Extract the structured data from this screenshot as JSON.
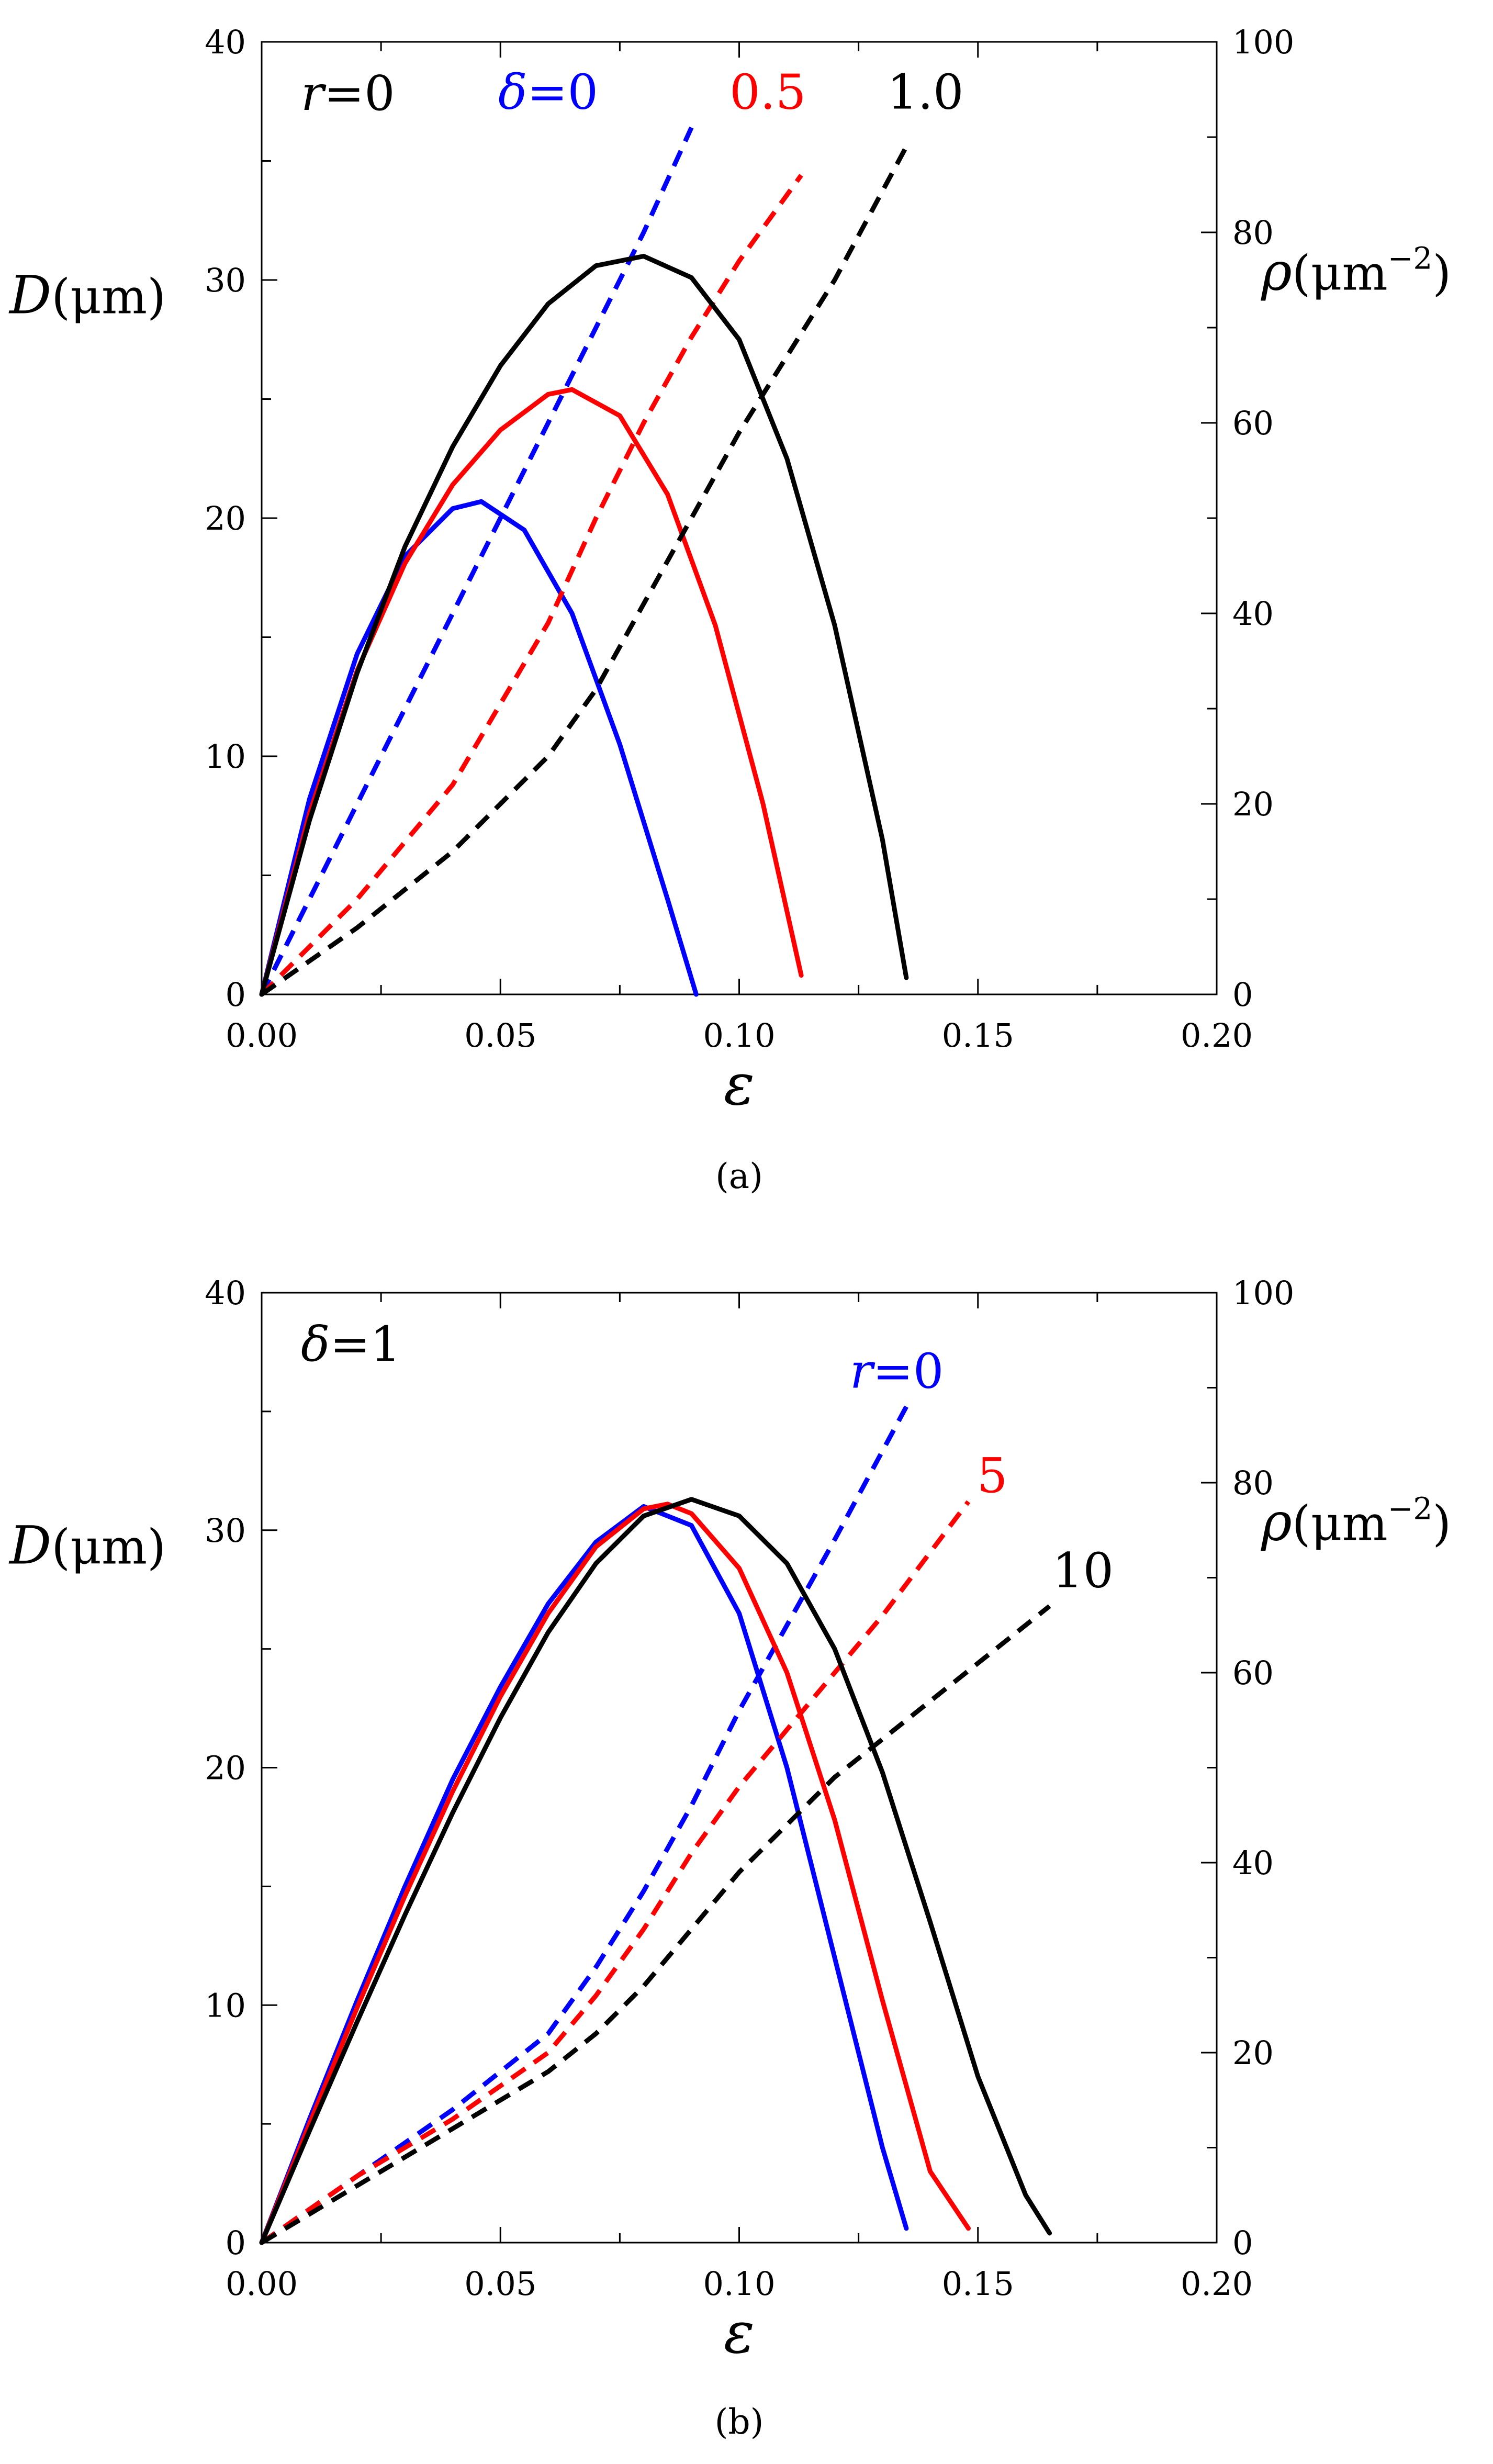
{
  "chart_data": [
    {
      "type": "line",
      "panel_label": "a",
      "caption": "(a)",
      "note": {
        "symbol": "r",
        "value": "0"
      },
      "xlabel": "ε",
      "ylabel_left": {
        "symbol": "D",
        "unit": "(μm)"
      },
      "ylabel_right": {
        "symbol": "ρ",
        "unit": "(μm",
        "exp": "−2",
        "close": ")"
      },
      "xlim": [
        0,
        0.2
      ],
      "ylim_left": [
        0,
        40
      ],
      "ylim_right": [
        0,
        100
      ],
      "xticks": [
        "0.00",
        "0.05",
        "0.10",
        "0.15",
        "0.20"
      ],
      "xtick_values": [
        0,
        0.05,
        0.1,
        0.15,
        0.2
      ],
      "yticks_left": [
        "0",
        "10",
        "20",
        "30",
        "40"
      ],
      "ytick_values_left": [
        0,
        10,
        20,
        30,
        40
      ],
      "yticks_right": [
        "0",
        "20",
        "40",
        "60",
        "80",
        "100"
      ],
      "ytick_values_right": [
        0,
        20,
        40,
        60,
        80,
        100
      ],
      "series_label_symbol": "δ=",
      "series": [
        {
          "name": "0",
          "label": "0",
          "label_symbol": true,
          "color": "#0000ff",
          "label_at": [
            0.06,
            93
          ],
          "D": {
            "x": [
              0,
              0.01,
              0.02,
              0.03,
              0.04,
              0.046,
              0.055,
              0.065,
              0.075,
              0.085,
              0.091
            ],
            "y": [
              0,
              8.2,
              14.3,
              18.4,
              20.4,
              20.7,
              19.5,
              16.0,
              10.5,
              4.0,
              0
            ]
          },
          "rho": {
            "x": [
              0,
              0.02,
              0.04,
              0.06,
              0.07,
              0.08,
              0.09
            ],
            "y": [
              0,
              20,
              40,
              60,
              70,
              80,
              91
            ]
          }
        },
        {
          "name": "0.5",
          "label": "0.5",
          "label_symbol": false,
          "color": "#ff0000",
          "label_at": [
            0.106,
            93
          ],
          "D": {
            "x": [
              0,
              0.01,
              0.02,
              0.03,
              0.04,
              0.05,
              0.06,
              0.065,
              0.075,
              0.085,
              0.095,
              0.105,
              0.113
            ],
            "y": [
              0,
              7.6,
              13.6,
              18.1,
              21.4,
              23.7,
              25.2,
              25.4,
              24.3,
              21.0,
              15.5,
              8.0,
              0.8
            ]
          },
          "rho": {
            "x": [
              0,
              0.02,
              0.04,
              0.06,
              0.07,
              0.08,
              0.09,
              0.1,
              0.113
            ],
            "y": [
              0,
              10,
              22,
              39,
              50,
              60,
              69,
              77,
              86
            ]
          }
        },
        {
          "name": "1.0",
          "label": "1.0",
          "label_symbol": false,
          "color": "#000000",
          "label_at": [
            0.139,
            93
          ],
          "D": {
            "x": [
              0,
              0.01,
              0.02,
              0.03,
              0.04,
              0.05,
              0.06,
              0.07,
              0.08,
              0.09,
              0.1,
              0.11,
              0.12,
              0.13,
              0.135
            ],
            "y": [
              0,
              7.3,
              13.5,
              18.8,
              23.0,
              26.4,
              29.0,
              30.6,
              31.0,
              30.1,
              27.5,
              22.5,
              15.5,
              6.5,
              0.7
            ]
          },
          "rho": {
            "x": [
              0,
              0.02,
              0.04,
              0.06,
              0.07,
              0.08,
              0.09,
              0.1,
              0.11,
              0.12,
              0.135
            ],
            "y": [
              0,
              7,
              15,
              25,
              32,
              41,
              50,
              59,
              67,
              75,
              89
            ]
          }
        }
      ]
    },
    {
      "type": "line",
      "panel_label": "b",
      "caption": "(b)",
      "note": {
        "symbol": "δ",
        "value": "1"
      },
      "xlabel": "ε",
      "ylabel_left": {
        "symbol": "D",
        "unit": "(μm)"
      },
      "ylabel_right": {
        "symbol": "ρ",
        "unit": "(μm",
        "exp": "−2",
        "close": ")"
      },
      "xlim": [
        0,
        0.2
      ],
      "ylim_left": [
        0,
        40
      ],
      "ylim_right": [
        0,
        100
      ],
      "xticks": [
        "0.00",
        "0.05",
        "0.10",
        "0.15",
        "0.20"
      ],
      "xtick_values": [
        0,
        0.05,
        0.1,
        0.15,
        0.2
      ],
      "yticks_left": [
        "0",
        "10",
        "20",
        "30",
        "40"
      ],
      "ytick_values_left": [
        0,
        10,
        20,
        30,
        40
      ],
      "yticks_right": [
        "0",
        "20",
        "40",
        "60",
        "80",
        "100"
      ],
      "ytick_values_right": [
        0,
        20,
        40,
        60,
        80,
        100
      ],
      "series_label_symbol": "r=",
      "series": [
        {
          "name": "0",
          "label": "0",
          "label_symbol": true,
          "color": "#0000ff",
          "label_at": [
            0.133,
            90
          ],
          "D": {
            "x": [
              0,
              0.01,
              0.02,
              0.03,
              0.04,
              0.05,
              0.06,
              0.07,
              0.08,
              0.09,
              0.1,
              0.11,
              0.12,
              0.13,
              0.135
            ],
            "y": [
              0,
              5.2,
              10.2,
              15.0,
              19.5,
              23.4,
              26.9,
              29.5,
              31.0,
              30.2,
              26.5,
              20.0,
              12.0,
              4.0,
              0.6
            ]
          },
          "rho": {
            "x": [
              0,
              0.02,
              0.04,
              0.06,
              0.07,
              0.08,
              0.09,
              0.1,
              0.11,
              0.12,
              0.135
            ],
            "y": [
              0,
              7,
              14,
              22,
              29,
              37,
              46,
              56,
              65,
              74,
              88
            ]
          }
        },
        {
          "name": "5",
          "label": "5",
          "label_symbol": false,
          "color": "#ff0000",
          "label_at": [
            0.153,
            79
          ],
          "D": {
            "x": [
              0,
              0.01,
              0.02,
              0.03,
              0.04,
              0.05,
              0.06,
              0.07,
              0.08,
              0.085,
              0.09,
              0.1,
              0.11,
              0.12,
              0.13,
              0.14,
              0.148
            ],
            "y": [
              0,
              5.0,
              9.9,
              14.6,
              19.0,
              23.0,
              26.5,
              29.3,
              30.9,
              31.1,
              30.7,
              28.4,
              24.0,
              17.8,
              10.2,
              3.0,
              0.6
            ]
          },
          "rho": {
            "x": [
              0,
              0.02,
              0.04,
              0.06,
              0.07,
              0.08,
              0.09,
              0.1,
              0.11,
              0.12,
              0.13,
              0.148
            ],
            "y": [
              0,
              7,
              13,
              20,
              26,
              33,
              41,
              48,
              54,
              60,
              66,
              78
            ]
          }
        },
        {
          "name": "10",
          "label": "10",
          "label_symbol": false,
          "color": "#000000",
          "label_at": [
            0.172,
            69
          ],
          "D": {
            "x": [
              0,
              0.01,
              0.02,
              0.03,
              0.04,
              0.05,
              0.06,
              0.07,
              0.08,
              0.09,
              0.1,
              0.11,
              0.12,
              0.13,
              0.14,
              0.15,
              0.16,
              0.165
            ],
            "y": [
              0,
              4.7,
              9.3,
              13.8,
              18.1,
              22.1,
              25.7,
              28.6,
              30.6,
              31.3,
              30.6,
              28.6,
              25.0,
              19.8,
              13.5,
              7.0,
              2.0,
              0.4
            ]
          },
          "rho": {
            "x": [
              0,
              0.02,
              0.04,
              0.06,
              0.07,
              0.08,
              0.09,
              0.1,
              0.11,
              0.12,
              0.13,
              0.14,
              0.15,
              0.165
            ],
            "y": [
              0,
              6,
              12,
              18,
              22,
              27,
              33,
              39,
              44,
              49,
              53,
              57,
              61,
              67
            ]
          }
        }
      ]
    }
  ]
}
